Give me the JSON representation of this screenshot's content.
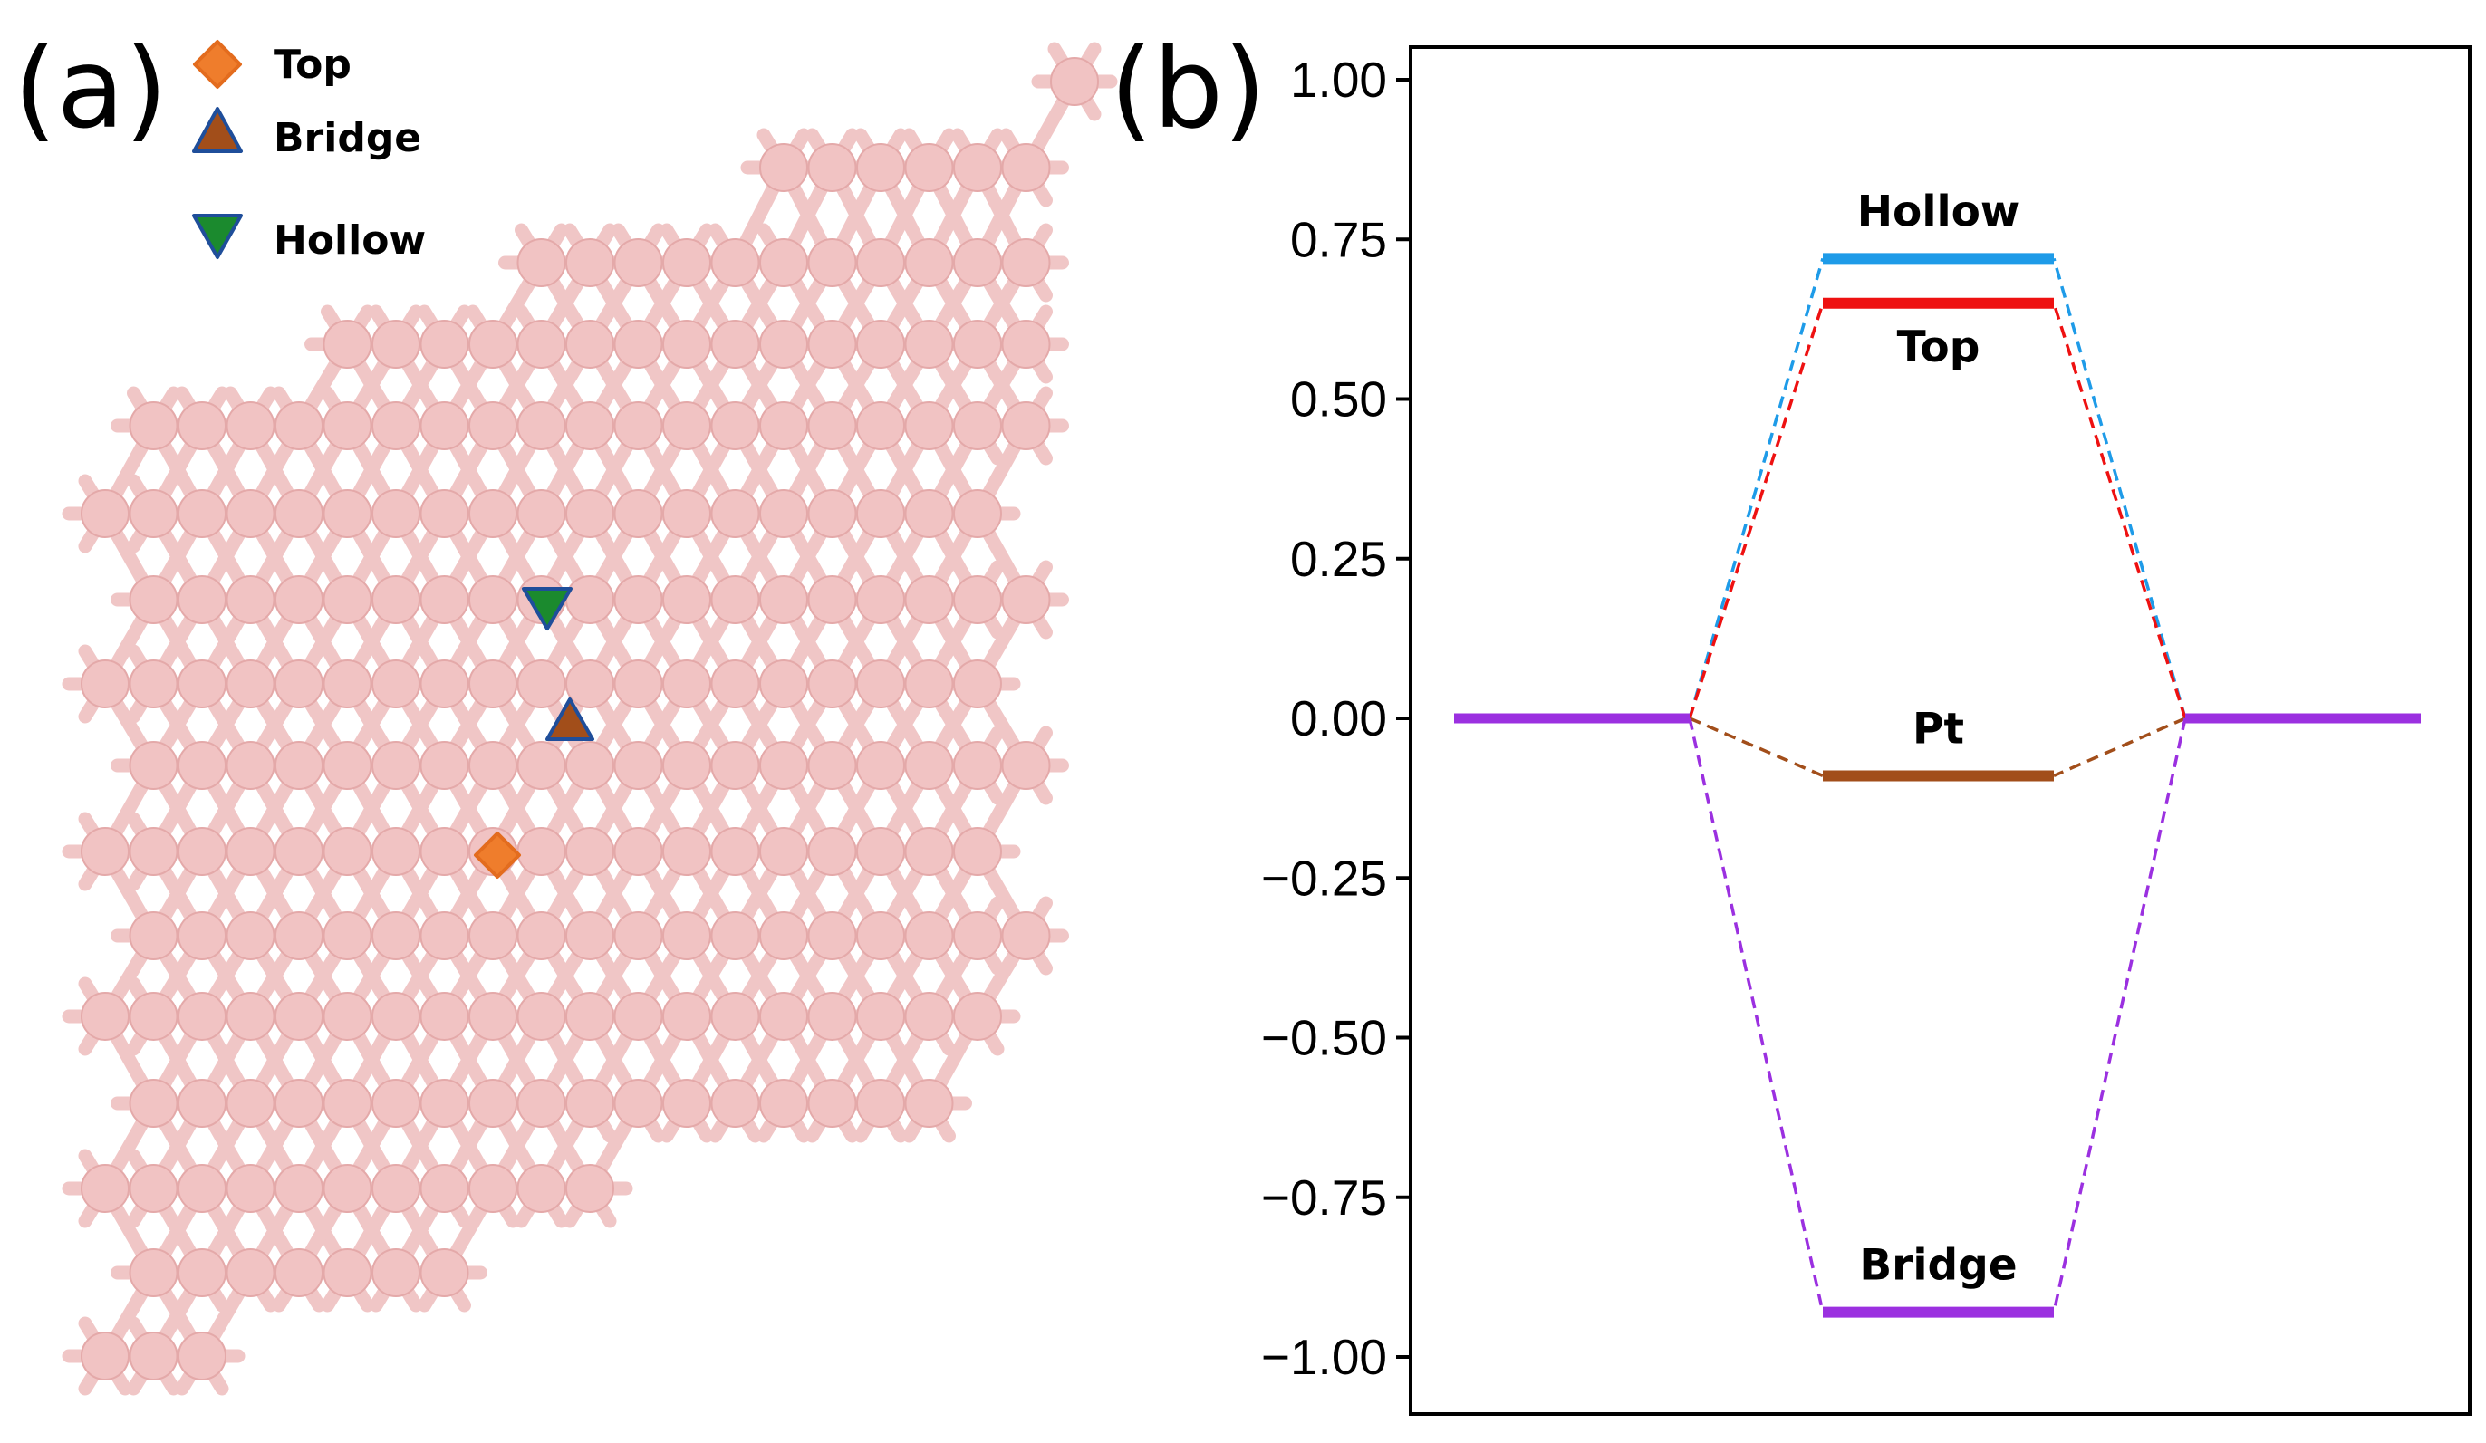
{
  "panel_a": {
    "label": "(a)",
    "legend": [
      {
        "name": "Top",
        "marker": "diamond",
        "color": "#ef7d2c",
        "edge": "#e36c1e"
      },
      {
        "name": "Bridge",
        "marker": "triangle-up",
        "color": "#a24e1a",
        "edge": "#1f4e9a"
      },
      {
        "name": "Hollow",
        "marker": "triangle-down",
        "color": "#1b8a2e",
        "edge": "#1f4e9a"
      }
    ],
    "lattice": {
      "atom_color": "#f1c3c3",
      "atom_edge": "#e4a9a9",
      "bond_color": "#f0c6c6"
    }
  },
  "panel_b": {
    "label": "(b)"
  },
  "chart_data": {
    "type": "energy-level-diagram",
    "ylim": [
      -1.1,
      1.1
    ],
    "yticks": [
      1.0,
      0.75,
      0.5,
      0.25,
      0.0,
      -0.25,
      -0.5,
      -0.75,
      -1.0
    ],
    "ytick_labels": [
      "1.00",
      "0.75",
      "0.50",
      "0.25",
      "0.00",
      "−0.25",
      "−0.50",
      "−0.75",
      "−1.00"
    ],
    "xlabel": "",
    "ylabel": "",
    "grid": false,
    "reference_levels": [
      {
        "name": "left-reference",
        "value": 0.0,
        "color": "#9b30e0"
      },
      {
        "name": "right-reference",
        "value": 0.0,
        "color": "#9b30e0"
      }
    ],
    "levels": [
      {
        "name": "Hollow",
        "value": 0.72,
        "color": "#1e9be8",
        "label_position": "above"
      },
      {
        "name": "Top",
        "value": 0.65,
        "color": "#ee1111",
        "label_position": "below"
      },
      {
        "name": "Pt",
        "value": -0.09,
        "color": "#a24e1a",
        "label_position": "above"
      },
      {
        "name": "Bridge",
        "value": -0.93,
        "color": "#9b30e0",
        "label_position": "above"
      }
    ]
  }
}
